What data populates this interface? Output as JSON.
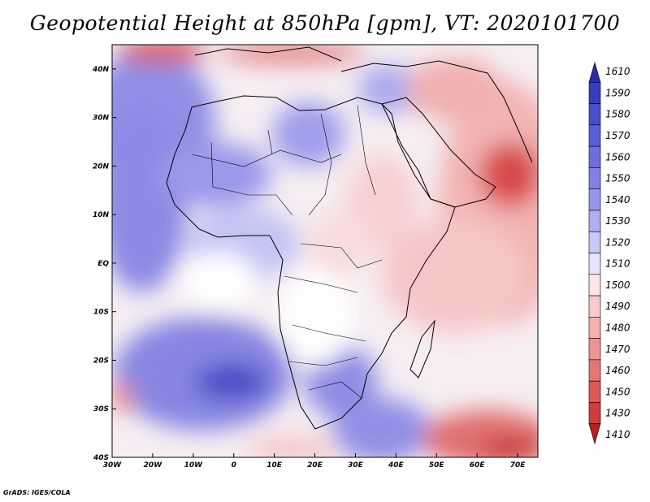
{
  "title": "Geopotential Height at 850hPa [gpm], VT: 2020101700",
  "credit": "GrADS: IGES/COLA",
  "map": {
    "region": "Africa and surrounding seas",
    "lat_labels": [
      "40N",
      "30N",
      "20N",
      "10N",
      "EQ",
      "10S",
      "20S",
      "30S",
      "40S"
    ],
    "lon_labels": [
      "30W",
      "20W",
      "10W",
      "0",
      "10E",
      "20E",
      "30E",
      "40E",
      "50E",
      "60E",
      "70E"
    ],
    "lon_range": [
      -30,
      75
    ],
    "lat_range": [
      -40,
      45
    ]
  },
  "colorbar": {
    "levels": [
      "1610",
      "1590",
      "1580",
      "1570",
      "1560",
      "1550",
      "1540",
      "1530",
      "1520",
      "1510",
      "1500",
      "1490",
      "1480",
      "1470",
      "1460",
      "1450",
      "1430",
      "1410"
    ],
    "colors": [
      "#2b2ba8",
      "#3b3bbf",
      "#4c4ccc",
      "#5d5dd6",
      "#6e6ede",
      "#8282e4",
      "#9898eb",
      "#afaff0",
      "#c8c8f6",
      "#e4e4fb",
      "#fbe5e5",
      "#f8caca",
      "#f3b0b0",
      "#ee9494",
      "#e67676",
      "#de5858",
      "#d13c3c",
      "#b81e1e"
    ]
  }
}
